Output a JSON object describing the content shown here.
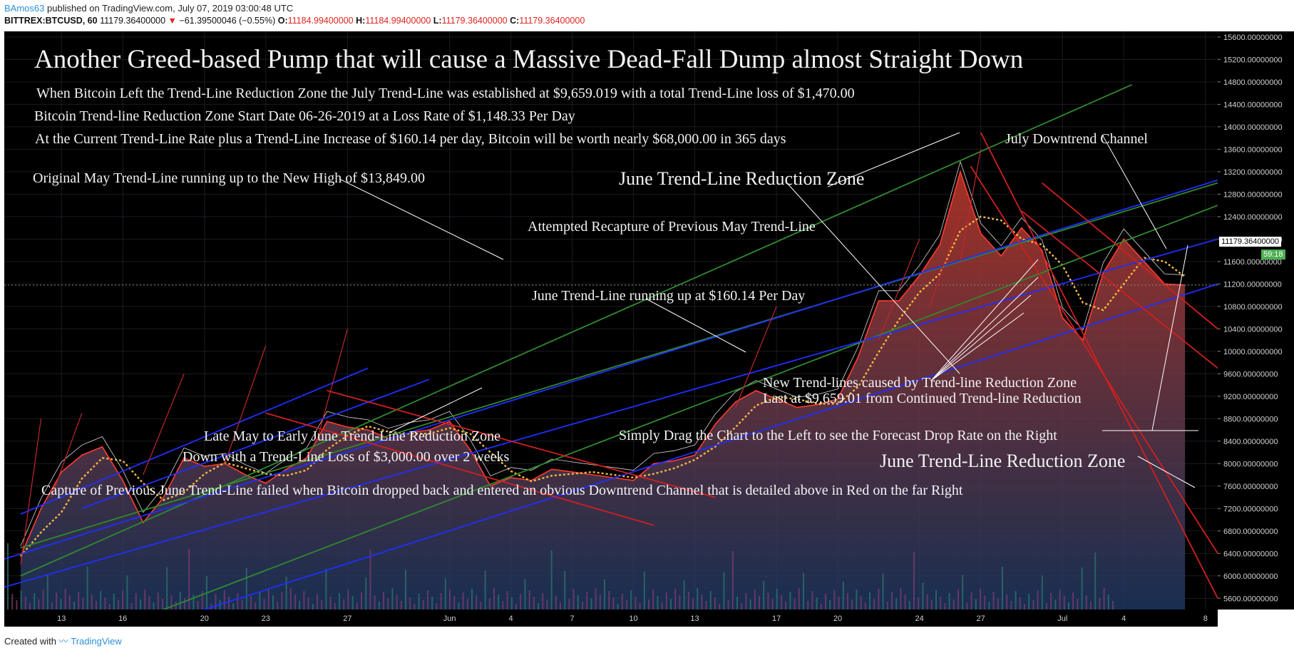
{
  "header": {
    "author": "BAmos63",
    "published_text": "published on TradingView.com, July 07, 2019 03:00:48 UTC",
    "symbol": "BITTREX:BTCUSD, 60",
    "last_price": "11179.36400000",
    "change_arrow": "▼",
    "change": "−61.39500046 (−0.55%)",
    "o_label": "O:",
    "o_value": "11184.99400000",
    "h_label": "H:",
    "h_value": "11184.99400000",
    "l_label": "L:",
    "l_value": "11179.36400000",
    "c_label": "C:",
    "c_value": "11179.36400000"
  },
  "footer": {
    "created_with": "Created with",
    "brand": "TradingView"
  },
  "price_tags": {
    "current": "11179.36400000",
    "countdown": "59:18"
  },
  "annotations": [
    {
      "id": "title",
      "text": "Another Greed-based Pump that will cause a Massive Dead-Fall Dump almost Straight Down"
    },
    {
      "id": "note1",
      "text": "When Bitcoin Left the Trend-Line Reduction Zone the July Trend-Line was established at $9,659.019 with a total Trend-Line loss of $1,470.00"
    },
    {
      "id": "note2",
      "text": "Bitcoin Trend-line Reduction Zone Start Date 06-26-2019 at a Loss Rate of $1,148.33 Per Day"
    },
    {
      "id": "note3",
      "text": "At the Current Trend-Line Rate plus a Trend-Line Increase of $160.14 per day, Bitcoin will be worth nearly $68,000.00 in 365 days"
    },
    {
      "id": "may-trend",
      "text": "Original May Trend-Line running up to the New High of $13,849.00"
    },
    {
      "id": "june-zone-top",
      "text": "June Trend-Line Reduction Zone"
    },
    {
      "id": "july-channel",
      "text": "July Downtrend Channel"
    },
    {
      "id": "recapture",
      "text": "Attempted Recapture of Previous May Trend-Line"
    },
    {
      "id": "june-trend",
      "text": "June Trend-Line running up at $160.14 Per Day"
    },
    {
      "id": "new-trendlines-1",
      "text": "New Trend-lines caused by Trend-line Reduction Zone"
    },
    {
      "id": "new-trendlines-2",
      "text": "Last at $9,659.01 from Continued Trend-line Reduction"
    },
    {
      "id": "late-may-1",
      "text": "Late May to Early June Trend-Line Reduction Zone"
    },
    {
      "id": "late-may-2",
      "text": "Down with a Trend-Line Loss of $3,000.00 over 2 weeks"
    },
    {
      "id": "drag",
      "text": "Simply Drag the Chart to the Left to see the Forecast Drop Rate on the Right"
    },
    {
      "id": "june-zone-bottom",
      "text": "June Trend-Line Reduction Zone"
    },
    {
      "id": "capture",
      "text": "Capture of Previous June Trend-Line failed when Bitcoin dropped back and entered an obvious Downtrend Channel that is detailed above in Red on the far Right"
    }
  ],
  "chart_data": {
    "type": "line",
    "symbol": "BITTREX:BTCUSD",
    "interval": "60",
    "ylim": [
      5400,
      15700
    ],
    "y_ticks": [
      "15600.00000000",
      "15200.00000000",
      "14800.00000000",
      "14400.00000000",
      "14000.00000000",
      "13600.00000000",
      "13200.00000000",
      "12800.00000000",
      "12400.00000000",
      "12000.00000000",
      "11600.00000000",
      "11200.00000000",
      "10800.00000000",
      "10400.00000000",
      "10000.00000000",
      "9600.00000000",
      "9200.00000000",
      "8800.00000000",
      "8400.00000000",
      "8000.00000000",
      "7600.00000000",
      "7200.00000000",
      "6800.00000000",
      "6400.00000000",
      "6000.00000000",
      "5600.00000000"
    ],
    "x_ticks": [
      "13",
      "16",
      "20",
      "23",
      "27",
      "Jun",
      "4",
      "7",
      "10",
      "13",
      "17",
      "20",
      "24",
      "27",
      "Jul",
      "4",
      "8"
    ],
    "x_days": [
      13,
      16,
      20,
      23,
      27,
      32,
      35,
      38,
      41,
      44,
      48,
      51,
      55,
      58,
      62,
      65,
      69
    ],
    "series": [
      {
        "x": [
          11,
          12,
          13,
          14,
          15,
          16,
          17,
          18,
          19,
          20,
          21,
          22,
          23,
          24,
          25,
          26,
          27,
          28,
          29,
          30,
          31,
          32,
          33,
          34,
          35,
          36,
          37,
          38,
          39,
          40,
          41,
          42,
          43,
          44,
          45,
          46,
          47,
          48,
          49,
          50,
          51,
          52,
          53,
          54,
          55,
          56,
          57,
          58,
          59,
          60,
          61,
          62,
          63,
          64,
          65,
          66,
          67,
          68
        ],
        "y": [
          6350,
          7200,
          7850,
          8150,
          8300,
          7700,
          6950,
          7400,
          8100,
          7950,
          8000,
          7800,
          7650,
          7900,
          8100,
          8750,
          8650,
          8600,
          8450,
          8550,
          8600,
          8750,
          8250,
          7600,
          7750,
          7700,
          7900,
          7850,
          7800,
          7750,
          7700,
          8000,
          8050,
          8150,
          8700,
          9100,
          9300,
          9150,
          9000,
          9050,
          9150,
          9900,
          10900,
          10900,
          11350,
          11900,
          13200,
          12100,
          11700,
          12200,
          11800,
          10600,
          10200,
          11400,
          12000,
          11600,
          11200,
          11179
        ]
      }
    ]
  }
}
